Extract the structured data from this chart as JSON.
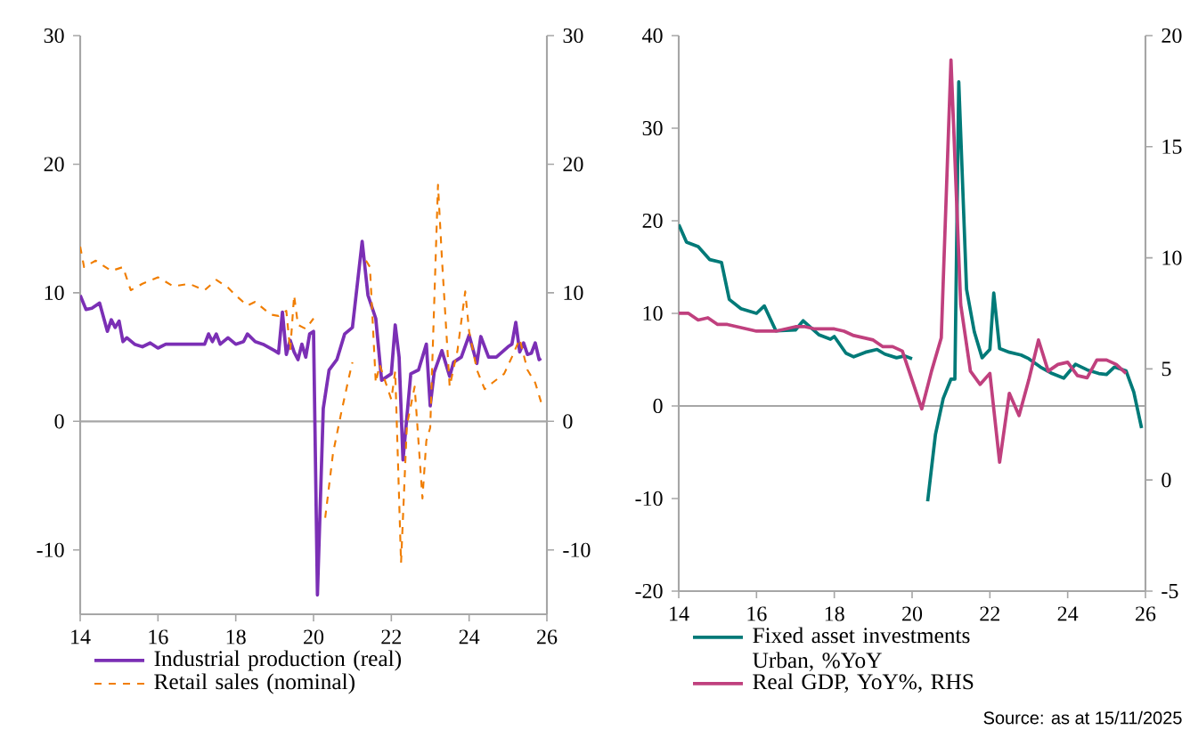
{
  "chart_data": [
    {
      "type": "line",
      "xlim": [
        14,
        26
      ],
      "xticks": [
        14,
        16,
        18,
        20,
        22,
        24,
        26
      ],
      "ylim": [
        -15,
        30
      ],
      "yticks": [
        -10,
        0,
        10,
        20,
        30
      ],
      "y2lim": [
        -15,
        30
      ],
      "y2ticks": [
        -10,
        0,
        10,
        20,
        30
      ],
      "legend": "bottom",
      "ref_lines": [
        {
          "axis": "y",
          "value": 0,
          "color": "#a6a6a6"
        }
      ],
      "series": [
        {
          "name": "Industrial production (real)",
          "color": "#7b2fb5",
          "line_style": "solid",
          "x": [
            14.0,
            14.15,
            14.3,
            14.5,
            14.7,
            14.8,
            14.9,
            15.0,
            15.1,
            15.2,
            15.4,
            15.6,
            15.8,
            16.0,
            16.2,
            16.5,
            16.8,
            17.0,
            17.2,
            17.3,
            17.4,
            17.5,
            17.6,
            17.8,
            18.0,
            18.2,
            18.3,
            18.5,
            18.7,
            19.0,
            19.1,
            19.2,
            19.3,
            19.4,
            19.5,
            19.6,
            19.7,
            19.8,
            19.9,
            20.0,
            20.1,
            20.25,
            20.4,
            20.6,
            20.8,
            21.0,
            21.1,
            21.25,
            21.4,
            21.6,
            21.75,
            22.0,
            22.1,
            22.2,
            22.3,
            22.5,
            22.7,
            22.9,
            23.0,
            23.1,
            23.3,
            23.5,
            23.6,
            23.8,
            24.0,
            24.1,
            24.2,
            24.3,
            24.5,
            24.7,
            25.0,
            25.1,
            25.2,
            25.3,
            25.4,
            25.5,
            25.6,
            25.7,
            25.8,
            25.85
          ],
          "values": [
            9.8,
            8.7,
            8.8,
            9.2,
            7.0,
            7.9,
            7.3,
            7.8,
            6.2,
            6.5,
            6.0,
            5.8,
            6.1,
            5.7,
            6.0,
            6.0,
            6.0,
            6.0,
            6.0,
            6.8,
            6.2,
            6.8,
            6.0,
            6.5,
            6.0,
            6.2,
            6.8,
            6.2,
            6.0,
            5.5,
            5.3,
            8.5,
            5.2,
            6.3,
            5.4,
            4.8,
            6.0,
            5.0,
            6.8,
            7.0,
            -13.5,
            1.0,
            4.0,
            4.8,
            6.8,
            7.3,
            null,
            14.0,
            9.8,
            8.0,
            3.2,
            3.7,
            7.5,
            5.0,
            -3.0,
            3.7,
            4.0,
            6.0,
            1.2,
            3.8,
            5.5,
            3.5,
            4.6,
            5.0,
            6.7,
            5.6,
            4.5,
            6.6,
            5.0,
            5.0,
            5.8,
            6.0,
            7.7,
            5.4,
            6.1,
            5.2,
            5.3,
            6.1,
            4.8,
            4.9
          ]
        },
        {
          "name": "Retail sales (nominal)",
          "color": "#f07d00",
          "line_style": "dashed",
          "x": [
            14.0,
            14.1,
            14.4,
            14.8,
            15.1,
            15.3,
            15.6,
            16.0,
            16.4,
            16.8,
            17.2,
            17.5,
            17.8,
            18.0,
            18.3,
            18.5,
            18.9,
            19.1,
            19.3,
            19.4,
            19.5,
            19.6,
            19.8,
            20.0,
            20.05,
            20.15,
            20.3,
            20.5,
            20.7,
            20.9,
            21.0,
            21.1,
            21.2,
            21.35,
            21.45,
            21.6,
            21.7,
            22.0,
            22.1,
            22.25,
            22.4,
            22.6,
            22.8,
            22.9,
            23.0,
            23.2,
            23.3,
            23.5,
            23.7,
            23.9,
            24.0,
            24.2,
            24.4,
            24.6,
            24.9,
            25.1,
            25.3,
            25.5,
            25.7,
            25.85
          ],
          "values": [
            13.6,
            12.0,
            12.5,
            11.7,
            12.0,
            10.2,
            10.7,
            11.2,
            10.5,
            10.7,
            10.2,
            11.0,
            10.4,
            9.8,
            9.0,
            9.3,
            8.3,
            8.2,
            8.6,
            5.5,
            9.8,
            7.5,
            7.2,
            8.0,
            null,
            null,
            -7.5,
            -2.5,
            0.5,
            3.3,
            4.6,
            null,
            null,
            12.5,
            12.0,
            3.0,
            4.4,
            1.7,
            3.9,
            -11.0,
            -0.3,
            2.7,
            -6.0,
            -1.5,
            -0.5,
            18.4,
            12.7,
            2.7,
            5.5,
            10.1,
            7.0,
            4.0,
            2.5,
            3.0,
            3.7,
            5.0,
            6.4,
            4.0,
            3.0,
            1.5
          ]
        }
      ]
    },
    {
      "type": "line",
      "xlim": [
        14,
        26
      ],
      "xticks": [
        14,
        16,
        18,
        20,
        22,
        24,
        26
      ],
      "ylim": [
        -20,
        40
      ],
      "yticks": [
        -20,
        -10,
        0,
        10,
        20,
        30,
        40
      ],
      "y2lim": [
        -5,
        20
      ],
      "y2ticks": [
        -5,
        0,
        5,
        10,
        15,
        20
      ],
      "legend": "bottom",
      "ref_lines": [
        {
          "axis": "y",
          "value": 0,
          "color": "#a6a6a6"
        }
      ],
      "annotations": [
        "Source: as at 15/11/2025"
      ],
      "series": [
        {
          "name": "Fixed asset investments Urban, %YoY",
          "color": "#007a78",
          "line_style": "solid",
          "x": [
            14.0,
            14.2,
            14.5,
            14.8,
            15.1,
            15.3,
            15.6,
            16.0,
            16.2,
            16.5,
            17.0,
            17.2,
            17.6,
            17.9,
            18.0,
            18.3,
            18.5,
            18.8,
            19.1,
            19.3,
            19.6,
            19.8,
            20.0,
            20.1,
            20.2,
            20.4,
            20.6,
            20.8,
            21.0,
            21.1,
            21.2,
            21.4,
            21.6,
            21.8,
            22.0,
            22.1,
            22.25,
            22.5,
            22.8,
            23.0,
            23.3,
            23.6,
            23.9,
            24.2,
            24.5,
            24.8,
            25.0,
            25.2,
            25.5,
            25.7,
            25.9
          ],
          "values": [
            19.6,
            17.7,
            17.2,
            15.8,
            15.5,
            11.5,
            10.5,
            10.0,
            10.8,
            8.1,
            8.2,
            9.2,
            7.7,
            7.2,
            7.5,
            5.7,
            5.3,
            5.8,
            6.1,
            5.6,
            5.2,
            5.4,
            5.1,
            null,
            null,
            -10.3,
            -3.1,
            0.8,
            2.9,
            2.9,
            35.0,
            12.6,
            8.0,
            5.2,
            6.1,
            12.2,
            6.2,
            5.8,
            5.5,
            5.1,
            4.2,
            3.5,
            3.0,
            4.5,
            3.9,
            3.5,
            3.4,
            4.2,
            3.8,
            1.5,
            -2.4
          ]
        },
        {
          "name": "Real GDP, YoY%, RHS",
          "color": "#c0407e",
          "line_style": "solid",
          "axis": "y2",
          "x": [
            14.0,
            14.25,
            14.5,
            14.75,
            15.0,
            15.25,
            15.5,
            15.75,
            16.0,
            16.25,
            16.5,
            16.75,
            17.0,
            17.25,
            17.5,
            17.75,
            18.0,
            18.25,
            18.5,
            18.75,
            19.0,
            19.25,
            19.5,
            19.75,
            20.0,
            20.25,
            20.5,
            20.75,
            21.0,
            21.25,
            21.5,
            21.75,
            22.0,
            22.25,
            22.5,
            22.75,
            23.0,
            23.25,
            23.5,
            23.75,
            24.0,
            24.25,
            24.5,
            24.75,
            25.0,
            25.25,
            25.5
          ],
          "values": [
            7.5,
            7.5,
            7.2,
            7.3,
            7.0,
            7.0,
            6.9,
            6.8,
            6.7,
            6.7,
            6.7,
            6.8,
            6.9,
            6.9,
            6.8,
            6.8,
            6.8,
            6.7,
            6.5,
            6.4,
            6.3,
            6.0,
            6.0,
            5.8,
            null,
            3.2,
            4.9,
            6.4,
            18.9,
            7.9,
            4.9,
            4.3,
            4.8,
            0.8,
            3.9,
            2.9,
            4.5,
            6.3,
            4.9,
            5.2,
            5.3,
            4.7,
            4.6,
            5.4,
            5.4,
            5.2,
            4.8
          ]
        }
      ]
    }
  ]
}
